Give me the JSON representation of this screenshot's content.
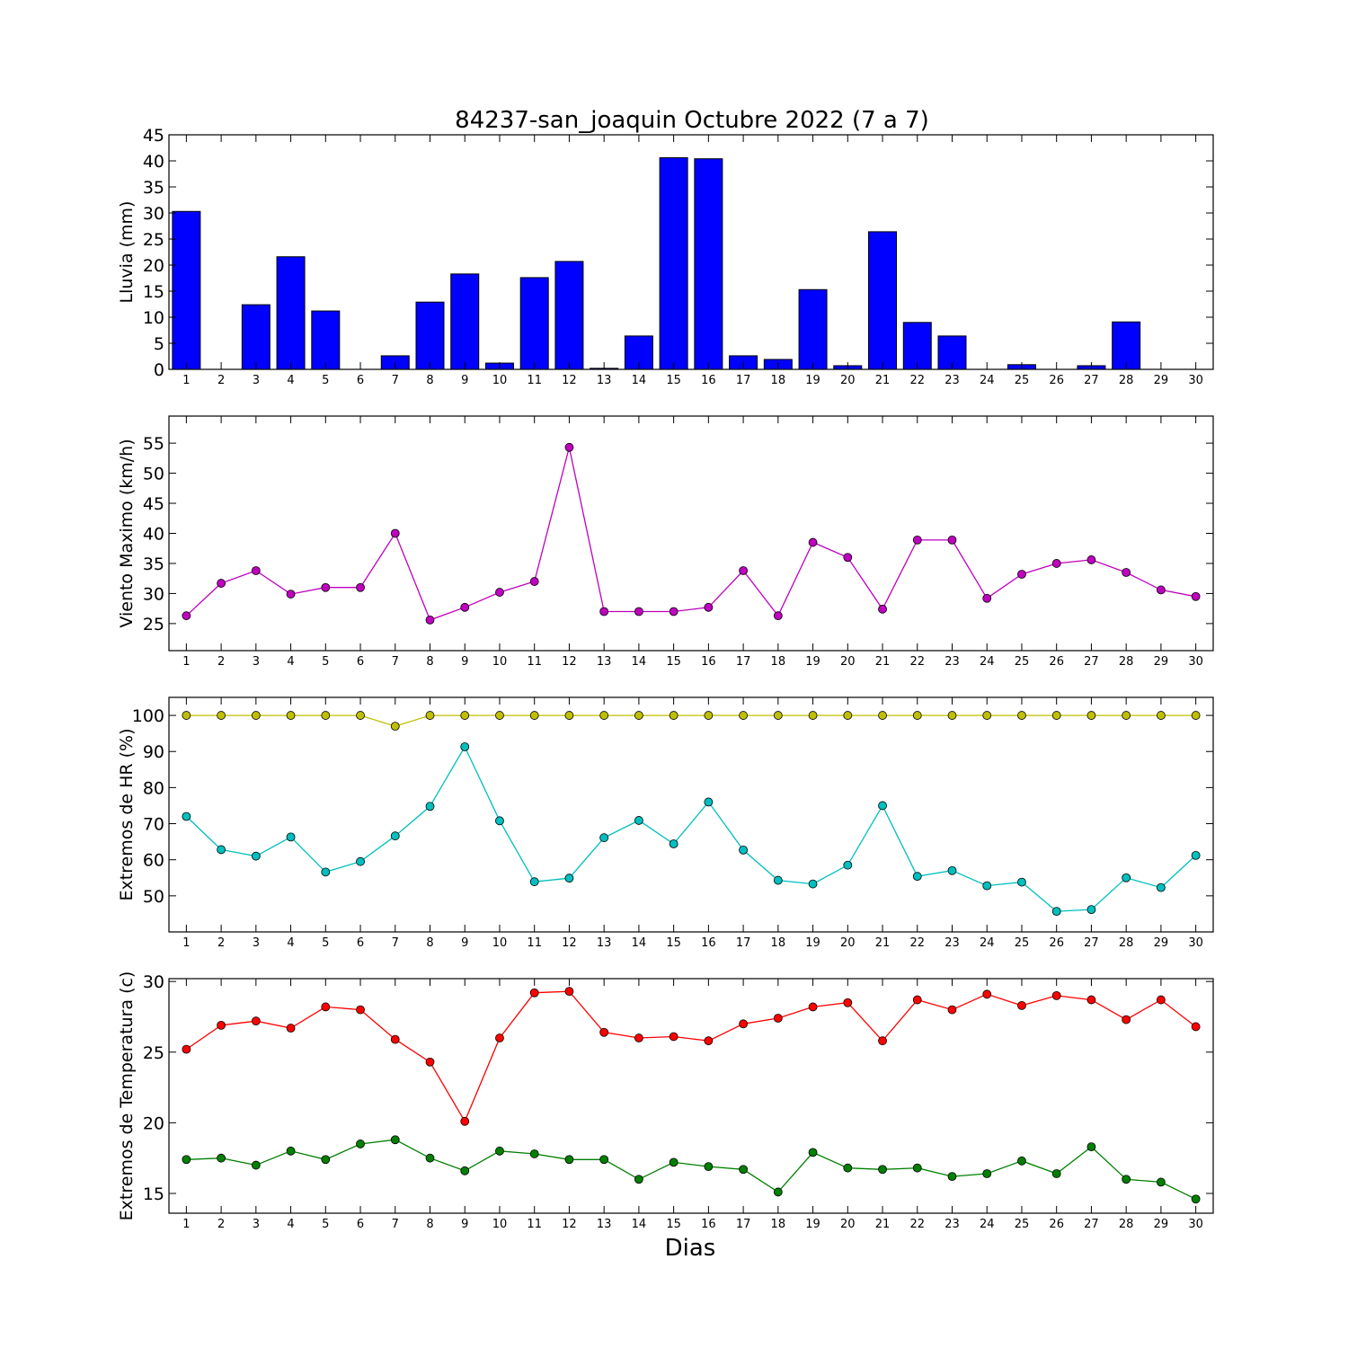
{
  "chart_data": {
    "title": "84237-san_joaquin Octubre 2022  (7 a 7)",
    "xlabel": "Dias",
    "days": [
      1,
      2,
      3,
      4,
      5,
      6,
      7,
      8,
      9,
      10,
      11,
      12,
      13,
      14,
      15,
      16,
      17,
      18,
      19,
      20,
      21,
      22,
      23,
      24,
      25,
      26,
      27,
      28,
      29,
      30
    ],
    "panels": [
      {
        "type": "bar",
        "ylabel": "Lluvia (mm)",
        "ylim": [
          0,
          45
        ],
        "yticks": [
          0,
          5,
          10,
          15,
          20,
          25,
          30,
          35,
          40,
          45
        ],
        "series": [
          {
            "color": "#0000ff",
            "values": [
              30.3,
              0,
              12.4,
              21.6,
              11.2,
              0,
              2.6,
              12.9,
              18.3,
              1.2,
              17.6,
              20.7,
              0.2,
              6.4,
              40.6,
              40.4,
              2.6,
              1.9,
              15.3,
              0.7,
              26.4,
              9.0,
              6.4,
              0,
              0.9,
              0,
              0.7,
              9.1,
              0,
              0
            ]
          }
        ]
      },
      {
        "type": "line",
        "ylabel": "Viento Maximo (km/h)",
        "ylim": [
          20.5,
          59.5
        ],
        "yticks": [
          25,
          30,
          35,
          40,
          45,
          50,
          55
        ],
        "series": [
          {
            "color": "#bf00bf",
            "values": [
              26.3,
              31.7,
              33.8,
              29.9,
              31.0,
              31.0,
              40.0,
              25.6,
              27.7,
              30.2,
              32.0,
              54.3,
              27.0,
              27.0,
              27.0,
              27.7,
              33.8,
              26.3,
              38.5,
              36.0,
              27.4,
              38.9,
              38.9,
              29.2,
              33.2,
              35.0,
              35.6,
              33.5,
              30.6,
              29.5
            ]
          }
        ]
      },
      {
        "type": "line",
        "ylabel": "Extremos de HR (%)",
        "ylim": [
          40,
          105
        ],
        "yticks": [
          50,
          60,
          70,
          80,
          90,
          100
        ],
        "series": [
          {
            "color": "#bfbf00",
            "values": [
              100,
              100,
              100,
              100,
              100,
              100,
              97,
              100,
              100,
              100,
              100,
              100,
              100,
              100,
              100,
              100,
              100,
              100,
              100,
              100,
              100,
              100,
              100,
              100,
              100,
              100,
              100,
              100,
              100,
              100
            ]
          },
          {
            "color": "#00bfbf",
            "values": [
              72,
              62.8,
              61,
              66.3,
              56.6,
              59.5,
              66.6,
              74.8,
              91.3,
              70.8,
              53.9,
              54.9,
              66.1,
              70.9,
              64.4,
              76,
              62.7,
              54.3,
              53.3,
              58.5,
              75,
              55.4,
              57,
              52.8,
              53.8,
              45.7,
              46.2,
              55,
              52.3,
              61.2
            ]
          }
        ]
      },
      {
        "type": "line",
        "ylabel": "Extremos de Temperatura (c)",
        "ylim": [
          13.6,
          30.2
        ],
        "yticks": [
          15,
          20,
          25,
          30
        ],
        "series": [
          {
            "color": "#ff0000",
            "values": [
              25.2,
              26.9,
              27.2,
              26.7,
              28.2,
              28.0,
              25.9,
              24.3,
              20.1,
              26.0,
              29.2,
              29.3,
              26.4,
              26.0,
              26.1,
              25.8,
              27.0,
              27.4,
              28.2,
              28.5,
              25.8,
              28.7,
              28.0,
              29.1,
              28.3,
              29.0,
              28.7,
              27.3,
              28.7,
              26.8
            ]
          },
          {
            "color": "#008000",
            "values": [
              17.4,
              17.5,
              17.0,
              18.0,
              17.4,
              18.5,
              18.8,
              17.5,
              16.6,
              18.0,
              17.8,
              17.4,
              17.4,
              16.0,
              17.2,
              16.9,
              16.7,
              15.1,
              17.9,
              16.8,
              16.7,
              16.8,
              16.2,
              16.4,
              17.3,
              16.4,
              18.3,
              16.0,
              15.8,
              14.6
            ]
          }
        ]
      }
    ]
  }
}
